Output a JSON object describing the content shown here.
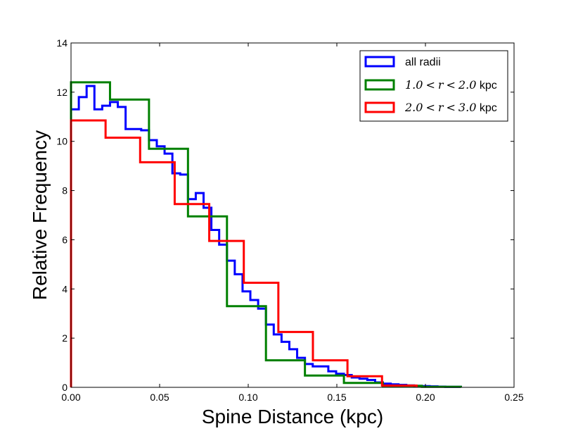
{
  "chart_data": {
    "type": "histogram-step",
    "title": "",
    "xlabel": "Spine Distance (kpc)",
    "ylabel": "Relative Frequency",
    "xlim": [
      0.0,
      0.25
    ],
    "ylim": [
      0,
      14
    ],
    "xticks": [
      "0.00",
      "0.05",
      "0.10",
      "0.15",
      "0.20",
      "0.25"
    ],
    "xtick_values": [
      0.0,
      0.05,
      0.1,
      0.15,
      0.2,
      0.25
    ],
    "yticks": [
      "0",
      "2",
      "4",
      "6",
      "8",
      "10",
      "12",
      "14"
    ],
    "ytick_values": [
      0,
      2,
      4,
      6,
      8,
      10,
      12,
      14
    ],
    "grid": false,
    "legend_position": "top-right",
    "series": [
      {
        "name": "all radii",
        "color": "#0000ff",
        "bin_edges": [
          0.0,
          0.0044,
          0.0088,
          0.0132,
          0.0176,
          0.022,
          0.0264,
          0.0308,
          0.0352,
          0.0396,
          0.044,
          0.0484,
          0.0528,
          0.0572,
          0.0616,
          0.066,
          0.0704,
          0.0748,
          0.0792,
          0.0836,
          0.088,
          0.0924,
          0.0968,
          0.1012,
          0.1056,
          0.11,
          0.1144,
          0.1188,
          0.1232,
          0.1276,
          0.132,
          0.1364,
          0.1408,
          0.1452,
          0.1496,
          0.154,
          0.1584,
          0.1628,
          0.1672,
          0.1716,
          0.176,
          0.1804,
          0.1848,
          0.1892,
          0.1936,
          0.198,
          0.2024,
          0.2068,
          0.2112,
          0.2156,
          0.22
        ],
        "values": [
          11.3,
          11.8,
          12.25,
          11.3,
          11.45,
          11.6,
          11.4,
          10.5,
          10.5,
          10.45,
          10.05,
          9.8,
          9.5,
          8.7,
          8.65,
          7.65,
          7.9,
          7.3,
          6.4,
          5.8,
          5.15,
          4.6,
          3.9,
          3.55,
          3.2,
          2.55,
          2.15,
          1.85,
          1.55,
          1.2,
          0.95,
          0.85,
          0.85,
          0.65,
          0.55,
          0.5,
          0.4,
          0.35,
          0.3,
          0.2,
          0.15,
          0.12,
          0.1,
          0.08,
          0.06,
          0.05,
          0.04,
          0.03,
          0.02,
          0.02
        ]
      },
      {
        "name": "1.0 < r < 2.0 kpc",
        "color": "#008000",
        "bin_edges": [
          0.0,
          0.022,
          0.044,
          0.066,
          0.088,
          0.11,
          0.132,
          0.154,
          0.176,
          0.198,
          0.22
        ],
        "values": [
          12.4,
          11.7,
          9.7,
          6.95,
          3.3,
          1.1,
          0.48,
          0.18,
          0.06,
          0.02
        ]
      },
      {
        "name": "2.0 < r < 3.0 kpc",
        "color": "#ff0000",
        "bin_edges": [
          0.0,
          0.0195,
          0.039,
          0.0585,
          0.078,
          0.0975,
          0.117,
          0.1365,
          0.156,
          0.1755,
          0.195
        ],
        "values": [
          10.85,
          10.15,
          9.15,
          7.45,
          5.95,
          4.25,
          2.25,
          1.1,
          0.45,
          0.07
        ]
      }
    ],
    "legend": [
      {
        "pre": "all radii",
        "series_index": 0
      },
      {
        "n1": "1.0",
        "lt1": "<",
        "var": "r",
        "lt2": "<",
        "n2": "2.0",
        "unit": " kpc",
        "series_index": 1
      },
      {
        "n1": "2.0",
        "lt1": "<",
        "var": "r",
        "lt2": "<",
        "n2": "3.0",
        "unit": " kpc",
        "series_index": 2
      }
    ]
  }
}
